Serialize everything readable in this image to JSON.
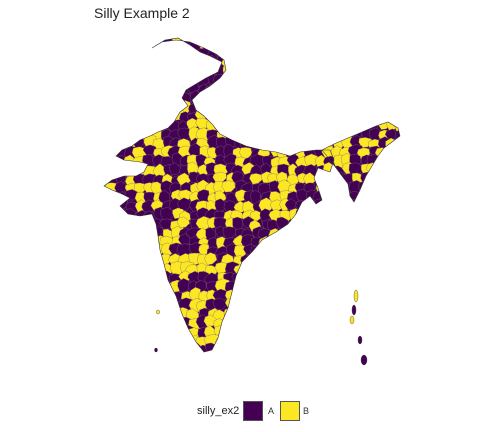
{
  "title": "Silly Example 2",
  "legend": {
    "title": "silly_ex2",
    "items": [
      {
        "label": "A",
        "color": "#440154"
      },
      {
        "label": "B",
        "color": "#FDE725"
      }
    ]
  },
  "map_style": {
    "border_color": "#6e6e6e",
    "fill_categories": [
      "A",
      "B"
    ]
  }
}
